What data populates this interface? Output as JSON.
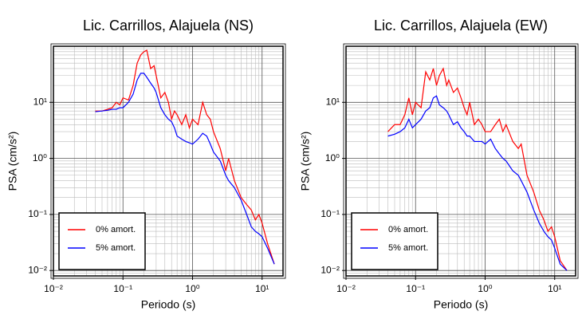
{
  "chart_data": [
    {
      "type": "line",
      "title": "Lic. Carrillos, Alajuela (NS)",
      "xlabel": "Periodo (s)",
      "ylabel": "PSA (cm/s²)",
      "xscale": "log",
      "yscale": "log",
      "grid": true,
      "legend": "lower left",
      "xlim": [
        0.01,
        20
      ],
      "ylim": [
        0.008,
        100
      ],
      "xticks": [
        {
          "value": 0.01,
          "label": "10⁻²"
        },
        {
          "value": 0.1,
          "label": "10⁻¹"
        },
        {
          "value": 1,
          "label": "10⁰"
        },
        {
          "value": 10,
          "label": "10¹"
        }
      ],
      "yticks": [
        {
          "value": 0.01,
          "label": "10⁻²"
        },
        {
          "value": 0.1,
          "label": "10⁻¹"
        },
        {
          "value": 1,
          "label": "10⁰"
        },
        {
          "value": 10,
          "label": "10¹"
        }
      ],
      "x": [
        0.04,
        0.05,
        0.06,
        0.07,
        0.08,
        0.09,
        0.1,
        0.12,
        0.14,
        0.16,
        0.18,
        0.2,
        0.22,
        0.25,
        0.28,
        0.3,
        0.35,
        0.4,
        0.45,
        0.5,
        0.55,
        0.6,
        0.7,
        0.8,
        0.9,
        1.0,
        1.2,
        1.4,
        1.6,
        1.8,
        2,
        2.5,
        3,
        3.3,
        4,
        5,
        6,
        7,
        8,
        9,
        10,
        12,
        15
      ],
      "series": [
        {
          "name": "0% amort.",
          "color": "#ff0000",
          "values": [
            7,
            7,
            7.5,
            8,
            10,
            9,
            12,
            11,
            20,
            50,
            70,
            80,
            85,
            40,
            45,
            30,
            12,
            15,
            10,
            5,
            7,
            6,
            4,
            6,
            3.5,
            5,
            4,
            10,
            6,
            5,
            3,
            1.5,
            0.6,
            1.0,
            0.4,
            0.2,
            0.15,
            0.12,
            0.08,
            0.1,
            0.07,
            0.03,
            0.013
          ]
        },
        {
          "name": "5% amort.",
          "color": "#0000ff",
          "values": [
            6.8,
            7,
            7.2,
            7.5,
            7.5,
            8,
            8,
            10,
            14,
            25,
            33,
            33,
            28,
            22,
            18,
            15,
            8,
            6,
            5,
            4.5,
            3.5,
            2.5,
            2.2,
            2.0,
            1.9,
            1.8,
            2.2,
            2.8,
            2.5,
            1.8,
            1.3,
            0.9,
            0.5,
            0.4,
            0.3,
            0.18,
            0.1,
            0.06,
            0.05,
            0.045,
            0.04,
            0.025,
            0.013
          ]
        }
      ]
    },
    {
      "type": "line",
      "title": "Lic. Carrillos, Alajuela (EW)",
      "xlabel": "Periodo (s)",
      "ylabel": "PSA (cm/s²)",
      "xscale": "log",
      "yscale": "log",
      "grid": true,
      "legend": "lower left",
      "xlim": [
        0.01,
        20
      ],
      "ylim": [
        0.008,
        100
      ],
      "xticks": [
        {
          "value": 0.01,
          "label": "10⁻²"
        },
        {
          "value": 0.1,
          "label": "10⁻¹"
        },
        {
          "value": 1,
          "label": "10⁰"
        },
        {
          "value": 10,
          "label": "10¹"
        }
      ],
      "yticks": [
        {
          "value": 0.01,
          "label": "10⁻²"
        },
        {
          "value": 0.1,
          "label": "10⁻¹"
        },
        {
          "value": 1,
          "label": "10⁰"
        },
        {
          "value": 10,
          "label": "10¹"
        }
      ],
      "x": [
        0.04,
        0.05,
        0.06,
        0.07,
        0.08,
        0.09,
        0.1,
        0.12,
        0.14,
        0.16,
        0.18,
        0.2,
        0.22,
        0.25,
        0.28,
        0.3,
        0.35,
        0.4,
        0.45,
        0.5,
        0.55,
        0.6,
        0.7,
        0.8,
        0.9,
        1.0,
        1.2,
        1.4,
        1.6,
        1.8,
        2,
        2.5,
        3,
        3.3,
        4,
        5,
        6,
        7,
        8,
        9,
        10,
        12,
        15
      ],
      "series": [
        {
          "name": "0% amort.",
          "color": "#ff0000",
          "values": [
            3,
            4,
            4,
            6,
            12,
            6,
            10,
            8,
            35,
            25,
            40,
            20,
            30,
            40,
            20,
            25,
            15,
            18,
            12,
            8,
            6,
            10,
            4,
            5,
            4,
            3,
            3,
            4,
            5,
            3,
            4,
            2,
            1.5,
            1.8,
            0.5,
            0.25,
            0.12,
            0.08,
            0.05,
            0.06,
            0.04,
            0.015,
            0.01
          ]
        },
        {
          "name": "5% amort.",
          "color": "#0000ff",
          "values": [
            2.5,
            2.7,
            3,
            3.5,
            5,
            3.5,
            4,
            5,
            7,
            8,
            12,
            13,
            9,
            8,
            7,
            6,
            4,
            4.5,
            3.5,
            3,
            2.5,
            2.5,
            2,
            2,
            2,
            1.8,
            2.2,
            1.5,
            1.2,
            1.0,
            0.9,
            0.6,
            0.5,
            0.4,
            0.25,
            0.12,
            0.07,
            0.05,
            0.04,
            0.035,
            0.025,
            0.013,
            0.01
          ]
        }
      ]
    }
  ]
}
